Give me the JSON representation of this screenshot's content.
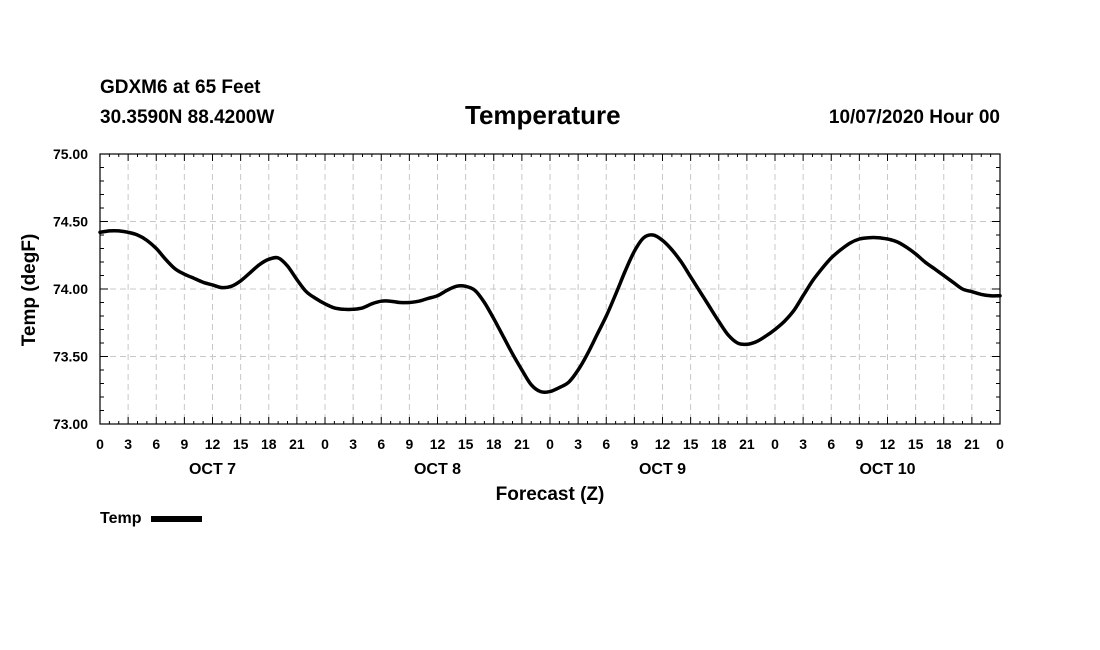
{
  "header": {
    "station": "GDXM6 at 65 Feet",
    "coords": "30.3590N 88.4200W",
    "title": "Temperature",
    "run": "10/07/2020 Hour 00"
  },
  "legend": {
    "label": "Temp"
  },
  "chart_data": {
    "type": "line",
    "title": "Temperature",
    "xlabel": "Forecast (Z)",
    "ylabel": "Temp (degF)",
    "ylim": [
      73.0,
      75.0
    ],
    "yticks": [
      73.0,
      73.5,
      74.0,
      74.5,
      75.0
    ],
    "ytick_labels": [
      "73.00",
      "73.50",
      "74.00",
      "74.50",
      "75.00"
    ],
    "xlim": [
      0,
      96
    ],
    "xticks": [
      0,
      3,
      6,
      9,
      12,
      15,
      18,
      21,
      24,
      27,
      30,
      33,
      36,
      39,
      42,
      45,
      48,
      51,
      54,
      57,
      60,
      63,
      66,
      69,
      72,
      75,
      78,
      81,
      84,
      87,
      90,
      93,
      96
    ],
    "xtick_labels": [
      "0",
      "3",
      "6",
      "9",
      "12",
      "15",
      "18",
      "21",
      "0",
      "3",
      "6",
      "9",
      "12",
      "15",
      "18",
      "21",
      "0",
      "3",
      "6",
      "9",
      "12",
      "15",
      "18",
      "21",
      "0",
      "3",
      "6",
      "9",
      "12",
      "15",
      "18",
      "21",
      "0"
    ],
    "day_labels": [
      {
        "label": "OCT 7",
        "hour": 12
      },
      {
        "label": "OCT 8",
        "hour": 36
      },
      {
        "label": "OCT 9",
        "hour": 60
      },
      {
        "label": "OCT 10",
        "hour": 84
      }
    ],
    "grid": true,
    "legend_position": "bottom-left",
    "series": [
      {
        "name": "Temp",
        "x": [
          0,
          1,
          2,
          3,
          4,
          5,
          6,
          7,
          8,
          9,
          10,
          11,
          12,
          13,
          14,
          15,
          16,
          17,
          18,
          19,
          20,
          21,
          22,
          23,
          24,
          25,
          26,
          27,
          28,
          29,
          30,
          31,
          32,
          33,
          34,
          35,
          36,
          37,
          38,
          39,
          40,
          41,
          42,
          43,
          44,
          45,
          46,
          47,
          48,
          49,
          50,
          51,
          52,
          53,
          54,
          55,
          56,
          57,
          58,
          59,
          60,
          61,
          62,
          63,
          64,
          65,
          66,
          67,
          68,
          69,
          70,
          71,
          72,
          73,
          74,
          75,
          76,
          77,
          78,
          79,
          80,
          81,
          82,
          83,
          84,
          85,
          86,
          87,
          88,
          89,
          90,
          91,
          92,
          93,
          94,
          95,
          96
        ],
        "values": [
          74.42,
          74.43,
          74.43,
          74.42,
          74.4,
          74.36,
          74.3,
          74.22,
          74.15,
          74.11,
          74.08,
          74.05,
          74.03,
          74.01,
          74.02,
          74.06,
          74.12,
          74.18,
          74.22,
          74.23,
          74.17,
          74.07,
          73.98,
          73.93,
          73.89,
          73.86,
          73.85,
          73.85,
          73.86,
          73.89,
          73.91,
          73.91,
          73.9,
          73.9,
          73.91,
          73.93,
          73.95,
          73.99,
          74.02,
          74.02,
          73.99,
          73.9,
          73.78,
          73.65,
          73.52,
          73.4,
          73.29,
          73.24,
          73.24,
          73.27,
          73.31,
          73.4,
          73.52,
          73.66,
          73.8,
          73.96,
          74.13,
          74.28,
          74.38,
          74.4,
          74.36,
          74.29,
          74.2,
          74.09,
          73.98,
          73.87,
          73.76,
          73.66,
          73.6,
          73.59,
          73.61,
          73.65,
          73.7,
          73.76,
          73.84,
          73.95,
          74.06,
          74.15,
          74.23,
          74.29,
          74.34,
          74.37,
          74.38,
          74.38,
          74.37,
          74.35,
          74.31,
          74.26,
          74.2,
          74.15,
          74.1,
          74.05,
          74.0,
          73.98,
          73.96,
          73.95,
          73.95
        ]
      }
    ]
  }
}
